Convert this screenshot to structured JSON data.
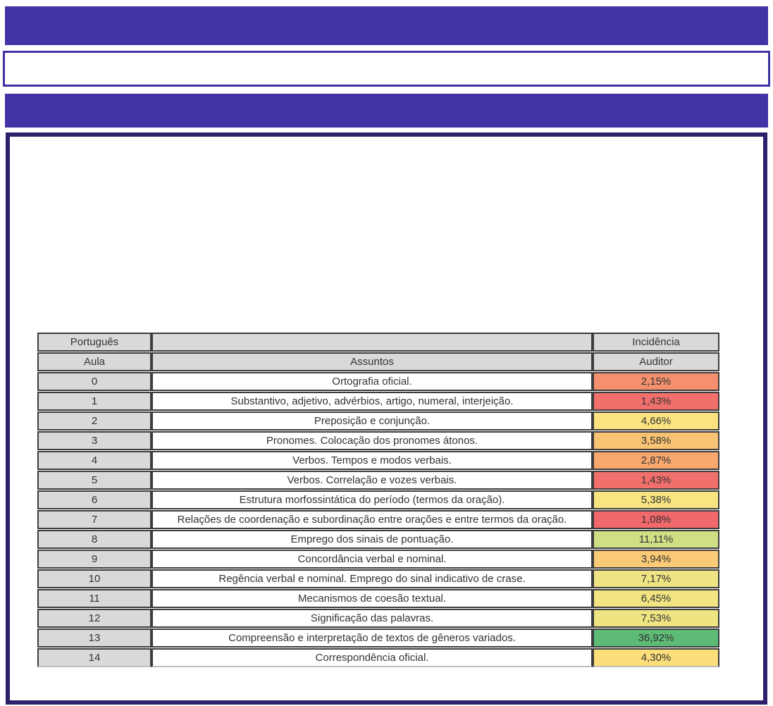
{
  "document": {
    "type": "course-incidence-report-page",
    "top_banner_text": "",
    "white_strip_text": "",
    "sub_banner_text": ""
  },
  "colors": {
    "banner_purple": "#4133A5",
    "content_box_border": "#2F1F6B",
    "table_header_bg": "#D9D9D9",
    "table_border": "#3d3d3d",
    "text": "#333333"
  },
  "table": {
    "header_row1": {
      "col1": "Português",
      "col2": "",
      "col3": "Incidência"
    },
    "header_row2": {
      "col1": "Aula",
      "col2": "Assuntos",
      "col3": "Auditor"
    },
    "rows": [
      {
        "aula": "0",
        "assunto": "Ortografia oficial.",
        "incidencia": "2,15%",
        "color": "#F4906E"
      },
      {
        "aula": "1",
        "assunto": "Substantivo, adjetivo, advérbios, artigo, numeral, interjeição.",
        "incidencia": "1,43%",
        "color": "#F2706C"
      },
      {
        "aula": "2",
        "assunto": "Preposição e conjunção.",
        "incidencia": "4,66%",
        "color": "#FBE380"
      },
      {
        "aula": "3",
        "assunto": "Pronomes. Colocação dos pronomes átonos.",
        "incidencia": "3,58%",
        "color": "#F9C374"
      },
      {
        "aula": "4",
        "assunto": "Verbos. Tempos e modos verbais.",
        "incidencia": "2,87%",
        "color": "#F8A76F"
      },
      {
        "aula": "5",
        "assunto": "Verbos. Correlação e vozes verbais.",
        "incidencia": "1,43%",
        "color": "#F2706C"
      },
      {
        "aula": "6",
        "assunto": "Estrutura morfossintática do período (termos da oração).",
        "incidencia": "5,38%",
        "color": "#F8E581"
      },
      {
        "aula": "7",
        "assunto": "Relações de coordenação e subordinação entre orações e entre termos da oração.",
        "incidencia": "1,08%",
        "color": "#F2696B"
      },
      {
        "aula": "8",
        "assunto": "Emprego dos sinais de pontuação.",
        "incidencia": "11,11%",
        "color": "#CEDF84"
      },
      {
        "aula": "9",
        "assunto": "Concordância verbal e nominal.",
        "incidencia": "3,94%",
        "color": "#FBCA76"
      },
      {
        "aula": "10",
        "assunto": "Regência verbal e nominal. Emprego do sinal indicativo de crase.",
        "incidencia": "7,17%",
        "color": "#EFE483"
      },
      {
        "aula": "11",
        "assunto": "Mecanismos de coesão textual.",
        "incidencia": "6,45%",
        "color": "#F2E482"
      },
      {
        "aula": "12",
        "assunto": "Significação das palavras.",
        "incidencia": "7,53%",
        "color": "#EEE482"
      },
      {
        "aula": "13",
        "assunto": "Compreensão e interpretação de textos de gêneros variados.",
        "incidencia": "36,92%",
        "color": "#5DBB76"
      },
      {
        "aula": "14",
        "assunto": "Correspondência oficial.",
        "incidencia": "4,30%",
        "color": "#FCDE7B"
      }
    ]
  }
}
